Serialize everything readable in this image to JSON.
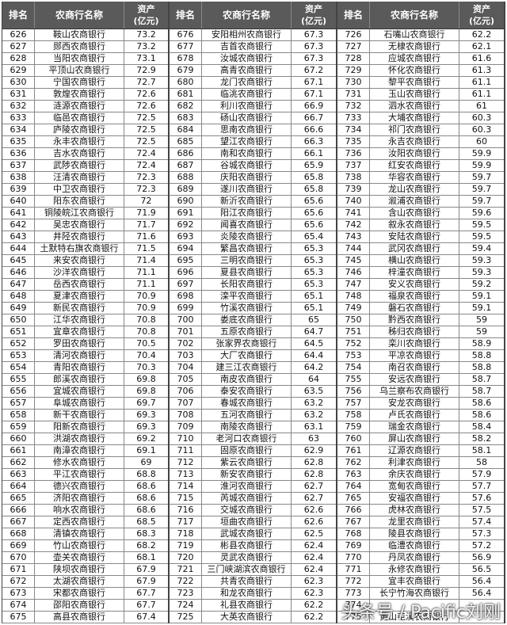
{
  "table": {
    "header": [
      "排名",
      "农商行名称",
      "资产",
      "(亿元)"
    ],
    "groups": [
      {
        "rows": [
          [
            626,
            "鞍山农商银行",
            73.2
          ],
          [
            627,
            "郧西农商银行",
            73.2
          ],
          [
            628,
            "当阳农商银行",
            73.1
          ],
          [
            629,
            "平顶山农商银行",
            72.9
          ],
          [
            630,
            "宁国农商银行",
            72.7
          ],
          [
            631,
            "敦煌农商银行",
            72.6
          ],
          [
            632,
            "涟源农商银行",
            72.6
          ],
          [
            633,
            "临邑农商银行",
            72.5
          ],
          [
            634,
            "庐陵农商银行",
            72.5
          ],
          [
            635,
            "永丰农商银行",
            72.5
          ],
          [
            636,
            "吉水农商银行",
            72.4
          ],
          [
            637,
            "武陟农商银行",
            72.4
          ],
          [
            638,
            "汪清农商银行",
            72.3
          ],
          [
            639,
            "中卫农商银行",
            72.3
          ],
          [
            640,
            "阳东农商银行",
            72
          ],
          [
            641,
            "铜陵皖江农商银行",
            71.9
          ],
          [
            642,
            "吴忠农商银行",
            71.7
          ],
          [
            643,
            "井陉农商银行",
            71.6
          ],
          [
            644,
            "土默特右旗农商银行",
            71.5
          ],
          [
            645,
            "来安农商银行",
            71.4
          ],
          [
            646,
            "沙洋农商银行",
            71.1
          ],
          [
            647,
            "岳西农商银行",
            71.1
          ],
          [
            648,
            "夏津农商银行",
            70.9
          ],
          [
            649,
            "新民农商银行",
            70.9
          ],
          [
            650,
            "江华农商银行",
            70.8
          ],
          [
            651,
            "宜章农商银行",
            70.8
          ],
          [
            652,
            "罗田农商银行",
            70.5
          ],
          [
            653,
            "清河农商银行",
            70.4
          ],
          [
            654,
            "青阳农商银行",
            70.3
          ],
          [
            655,
            "郎溪农商银行",
            69.8
          ],
          [
            656,
            "宜城农商银行",
            69.8
          ],
          [
            657,
            "阜城农商银行",
            69.7
          ],
          [
            658,
            "新干农商银行",
            69.3
          ],
          [
            659,
            "阳新农商银行",
            69.3
          ],
          [
            660,
            "洪湖农商银行",
            69.2
          ],
          [
            661,
            "南漳农商银行",
            69.1
          ],
          [
            662,
            "修水农商银行",
            69
          ],
          [
            663,
            "平江农商银行",
            68.8
          ],
          [
            664,
            "德兴农商银行",
            68.6
          ],
          [
            665,
            "济阳农商银行",
            68.6
          ],
          [
            666,
            "响水农商银行",
            68.6
          ],
          [
            667,
            "定西农商银行",
            68.5
          ],
          [
            668,
            "清镇农商银行",
            68.3
          ],
          [
            669,
            "竹山农商银行",
            68.2
          ],
          [
            670,
            "壶关农商银行",
            68.1
          ],
          [
            671,
            "陕坝农商银行",
            67.9
          ],
          [
            672,
            "太湖农商银行",
            67.9
          ],
          [
            673,
            "宋都农商银行",
            67.7
          ],
          [
            674,
            "邵阳农商银行",
            67.7
          ],
          [
            675,
            "高县农商银行",
            67.4
          ]
        ]
      },
      {
        "rows": [
          [
            676,
            "安阳相州农商银行",
            67.3
          ],
          [
            677,
            "吉首农商银行",
            67.3
          ],
          [
            678,
            "汝城农商银行",
            67.3
          ],
          [
            679,
            "高青农商银行",
            67.2
          ],
          [
            680,
            "龙门农商银行",
            67.1
          ],
          [
            681,
            "临洮农商银行",
            67.1
          ],
          [
            682,
            "利川农商银行",
            66.9
          ],
          [
            683,
            "砀山农商银行",
            66.7
          ],
          [
            684,
            "思南农商银行",
            66.6
          ],
          [
            685,
            "望江农商银行",
            66.3
          ],
          [
            686,
            "南和农商银行",
            66.1
          ],
          [
            687,
            "谷城农商银行",
            65.9
          ],
          [
            688,
            "庆阳农商银行",
            65.8
          ],
          [
            689,
            "遂川农商银行",
            65.8
          ],
          [
            690,
            "新沂农商银行",
            65.6
          ],
          [
            691,
            "阳江农商银行",
            65.6
          ],
          [
            692,
            "闻喜农商银行",
            65.6
          ],
          [
            693,
            "炎陵农商银行",
            65.4
          ],
          [
            694,
            "繁昌农商银行",
            65.3
          ],
          [
            695,
            "三明农商银行",
            65.3
          ],
          [
            696,
            "夏县农商银行",
            65.3
          ],
          [
            697,
            "长阳农商银行",
            65.3
          ],
          [
            698,
            "滦平农商银行",
            65.1
          ],
          [
            699,
            "竹溪农商银行",
            65.1
          ],
          [
            700,
            "娄底农商银行",
            65
          ],
          [
            701,
            "五原农商银行",
            64.7
          ],
          [
            702,
            "张家界农商银行",
            64.5
          ],
          [
            703,
            "大厂农商银行",
            64.4
          ],
          [
            704,
            "建三江农商银行",
            64.2
          ],
          [
            705,
            "南皮农商银行",
            64
          ],
          [
            706,
            "泰安农商银行",
            63.5
          ],
          [
            707,
            "春城农商银行",
            63.2
          ],
          [
            708,
            "五河农商银行",
            63.2
          ],
          [
            709,
            "南陵农商银行",
            63.1
          ],
          [
            710,
            "老河口农商银行",
            63
          ],
          [
            711,
            "固原农商银行",
            62.9
          ],
          [
            712,
            "紫云农商银行",
            62.8
          ],
          [
            713,
            "新安农商银行",
            62.8
          ],
          [
            714,
            "淮河农商银行",
            62.7
          ],
          [
            715,
            "芮城农商银行",
            62.7
          ],
          [
            716,
            "交城农商银行",
            62.6
          ],
          [
            717,
            "垣曲农商银行",
            62.6
          ],
          [
            718,
            "武城农商银行",
            62.5
          ],
          [
            719,
            "彬县农商银行",
            62.4
          ],
          [
            720,
            "灵武农商银行",
            62.4
          ],
          [
            721,
            "三门峡湖滨农商银行",
            62.4
          ],
          [
            722,
            "共青农商银行",
            62.3
          ],
          [
            723,
            "和龙农商银行",
            62.3
          ],
          [
            724,
            "礼县农商银行",
            62.2
          ],
          [
            725,
            "大英农商银行",
            62.2
          ]
        ]
      },
      {
        "rows": [
          [
            726,
            "石嘴山农商银行",
            62.2
          ],
          [
            727,
            "无棣农商银行",
            62.1
          ],
          [
            728,
            "应城农商银行",
            61.6
          ],
          [
            729,
            "怀化农商银行",
            61.3
          ],
          [
            730,
            "黎平农商银行",
            61.1
          ],
          [
            731,
            "玉山农商银行",
            61.1
          ],
          [
            732,
            "泗水农商银行",
            61
          ],
          [
            733,
            "大埔农商银行",
            60.3
          ],
          [
            734,
            "祁门农商银行",
            60.3
          ],
          [
            735,
            "永吉农商银行",
            60
          ],
          [
            736,
            "汝阳农商银行",
            59.9
          ],
          [
            737,
            "红安农商银行",
            59.9
          ],
          [
            738,
            "华容农商银行",
            59.7
          ],
          [
            739,
            "龙山农商银行",
            59.7
          ],
          [
            740,
            "溆浦农商银行",
            59.7
          ],
          [
            741,
            "含山农商银行",
            59.6
          ],
          [
            742,
            "叙永农商银行",
            59.5
          ],
          [
            743,
            "安陆农商银行",
            59.5
          ],
          [
            744,
            "武冈农商银行",
            59.4
          ],
          [
            745,
            "横山农商银行",
            59.3
          ],
          [
            746,
            "梓潼农商银行",
            59.3
          ],
          [
            747,
            "安义农商银行",
            59.2
          ],
          [
            748,
            "福泉农商银行",
            59.1
          ],
          [
            749,
            "磐石农商银行",
            59.1
          ],
          [
            750,
            "黔西农商银行",
            59
          ],
          [
            751,
            "秭归农商银行",
            59
          ],
          [
            752,
            "栾川农商银行",
            58.9
          ],
          [
            753,
            "平凉农商银行",
            58.8
          ],
          [
            754,
            "南召农商银行",
            58.8
          ],
          [
            755,
            "安远农商银行",
            58.7
          ],
          [
            756,
            "乌兰察布农商银行",
            58.7
          ],
          [
            757,
            "安龙农商银行",
            58.6
          ],
          [
            758,
            "卢氏农商银行",
            58.6
          ],
          [
            759,
            "瑞金农商银行",
            58.4
          ],
          [
            760,
            "屏山农商银行",
            58.2
          ],
          [
            761,
            "辽源农商银行",
            58.1
          ],
          [
            762,
            "利津农商银行",
            58
          ],
          [
            763,
            "余庆农商银行",
            57.9
          ],
          [
            764,
            "宽甸农商银行",
            57.7
          ],
          [
            765,
            "安福农商银行",
            57.6
          ],
          [
            766,
            "虎林农商银行",
            57.5
          ],
          [
            767,
            "龙里农商银行",
            57.4
          ],
          [
            768,
            "陵县农商银行",
            57.3
          ],
          [
            769,
            "临澧农商银行",
            57.2
          ],
          [
            770,
            "丹凤农商银行",
            56.9
          ],
          [
            771,
            "永修农商银行",
            56.5
          ],
          [
            772,
            "宜丰农商银行",
            56.4
          ],
          [
            773,
            "长宁竹海农商银行",
            56.4
          ],
          [
            774,
            null,
            null
          ],
          [
            775,
            "黄山屯溪农商银行",
            null
          ]
        ]
      }
    ]
  },
  "watermark": "头条号 / Pacific刘刚"
}
